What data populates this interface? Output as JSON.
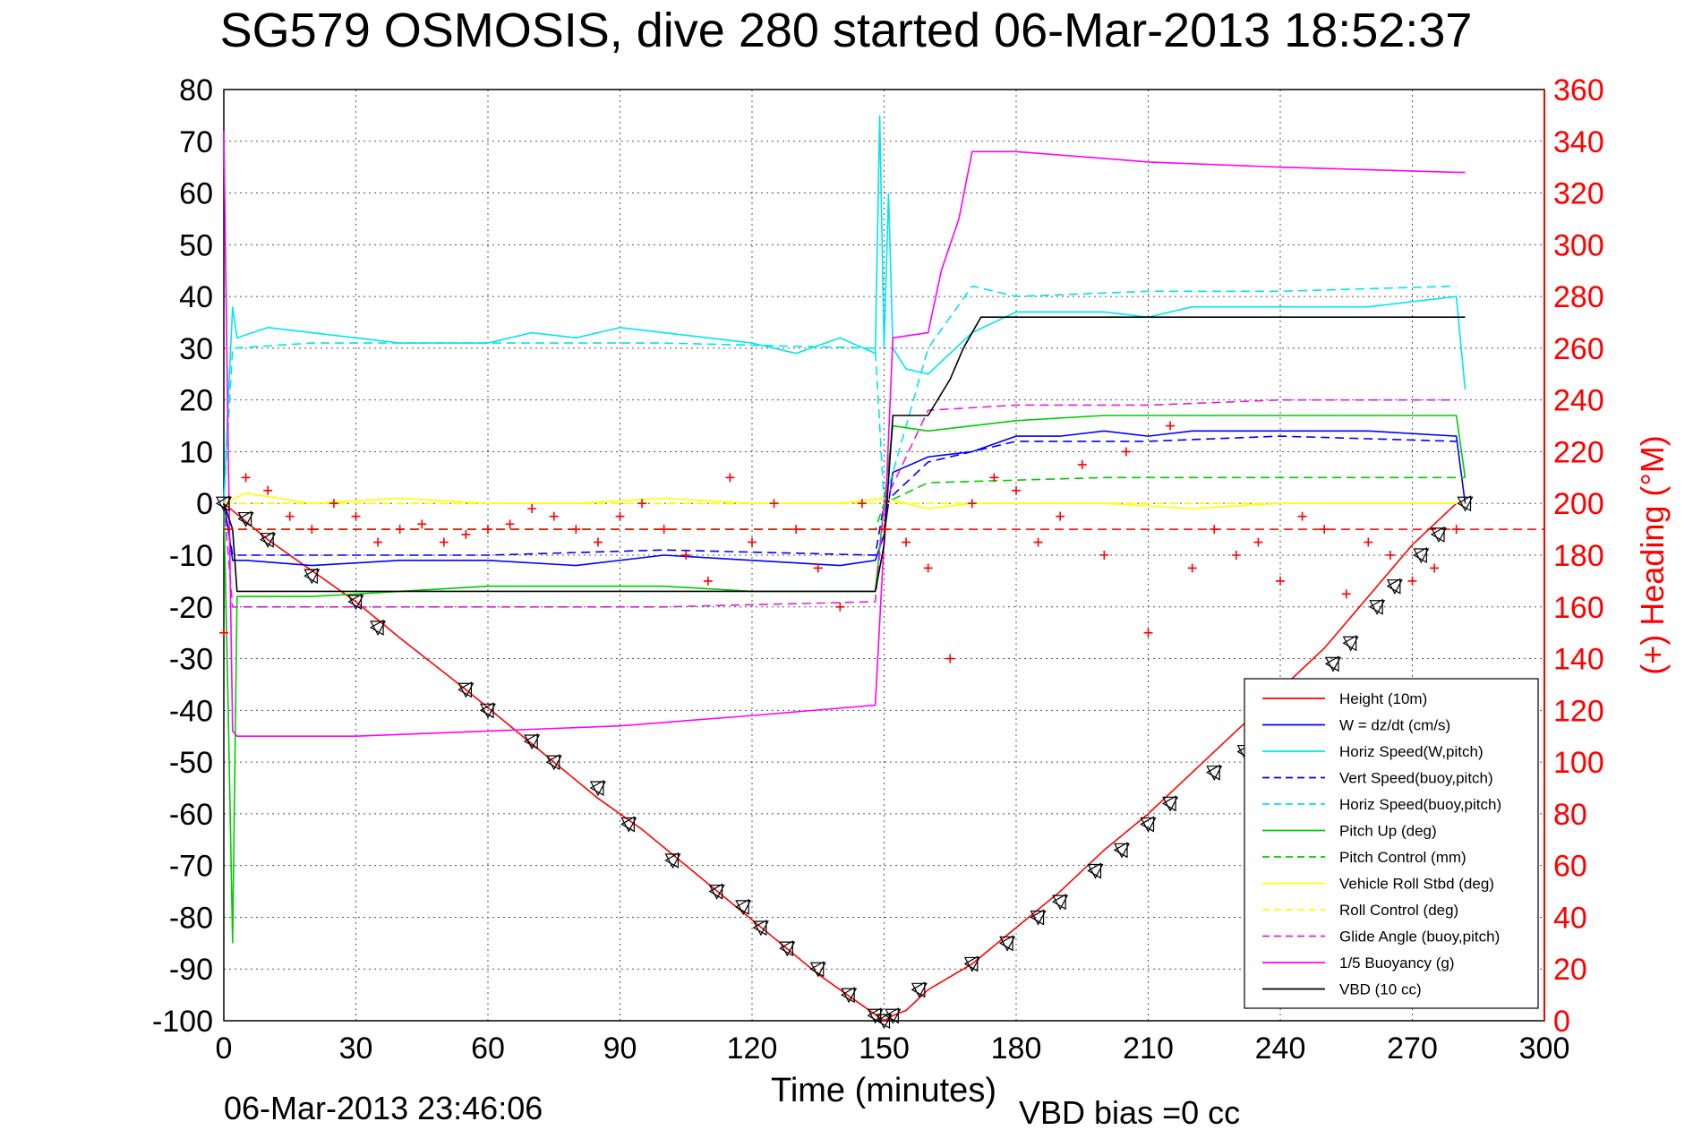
{
  "chart_data": {
    "type": "line",
    "title": "SG579 OSMOSIS, dive 280 started 06-Mar-2013 18:52:37",
    "xlabel": "Time (minutes)",
    "ylabel_right": "(+) Heading (°M)",
    "footer_left": "06-Mar-2013 23:46:06",
    "footer_right": "VBD bias =0 cc",
    "xlim": [
      0,
      300
    ],
    "ylim_left": [
      -100,
      80
    ],
    "ylim_right": [
      0,
      360
    ],
    "x_ticks": [
      "0",
      "30",
      "60",
      "90",
      "120",
      "150",
      "180",
      "210",
      "240",
      "270",
      "300"
    ],
    "y_left_ticks": [
      "80",
      "70",
      "60",
      "50",
      "40",
      "30",
      "20",
      "10",
      "0",
      "-10",
      "-20",
      "-30",
      "-40",
      "-50",
      "-60",
      "-70",
      "-80",
      "-90",
      "-100"
    ],
    "y_right_ticks": [
      "360",
      "340",
      "320",
      "300",
      "280",
      "260",
      "240",
      "220",
      "200",
      "180",
      "160",
      "140",
      "120",
      "100",
      "80",
      "60",
      "40",
      "20",
      "0"
    ],
    "grid": true,
    "legend_position": "bottom-right",
    "series": [
      {
        "name": "Height (10m)",
        "color": "#ff0000",
        "dash": "solid",
        "x": [
          0,
          10,
          20,
          30,
          40,
          55,
          65,
          75,
          85,
          95,
          105,
          115,
          125,
          135,
          145,
          150,
          152,
          155,
          160,
          170,
          180,
          190,
          200,
          210,
          220,
          230,
          240,
          250,
          260,
          270,
          280
        ],
        "y": [
          0,
          -7,
          -13,
          -19,
          -26,
          -36,
          -43,
          -50,
          -57,
          -63,
          -70,
          -77,
          -84,
          -91,
          -97,
          -100,
          -99,
          -98,
          -94,
          -89,
          -82,
          -75,
          -67,
          -60,
          -52,
          -44,
          -36,
          -28,
          -18,
          -8,
          0
        ]
      },
      {
        "name": "W = dz/dt (cm/s)",
        "color": "#0000ff",
        "dash": "solid",
        "x": [
          0,
          1,
          2,
          5,
          20,
          40,
          60,
          80,
          100,
          120,
          140,
          148,
          150,
          152,
          160,
          170,
          180,
          190,
          200,
          210,
          220,
          240,
          260,
          280,
          282
        ],
        "y": [
          0,
          -5,
          -11,
          -11,
          -12,
          -11,
          -11,
          -12,
          -10,
          -11,
          -12,
          -11,
          -6,
          6,
          9,
          10,
          13,
          13,
          14,
          13,
          14,
          14,
          14,
          13,
          0
        ]
      },
      {
        "name": "Horiz Speed(W,pitch)",
        "color": "#00e5ee",
        "dash": "solid",
        "x": [
          0,
          1,
          2,
          3,
          10,
          20,
          30,
          40,
          50,
          60,
          70,
          80,
          90,
          100,
          110,
          120,
          130,
          140,
          148,
          149,
          150,
          151,
          152,
          155,
          160,
          170,
          180,
          190,
          200,
          210,
          220,
          240,
          260,
          280,
          282
        ],
        "y": [
          0,
          20,
          38,
          32,
          34,
          33,
          32,
          31,
          31,
          31,
          33,
          32,
          34,
          33,
          32,
          31,
          29,
          32,
          29,
          75,
          30,
          60,
          30,
          26,
          25,
          33,
          37,
          37,
          37,
          36,
          38,
          38,
          38,
          40,
          22
        ]
      },
      {
        "name": "Vert Speed(buoy,pitch)",
        "color": "#0000ff",
        "dash": "dashed",
        "x": [
          0,
          2,
          20,
          60,
          100,
          148,
          150,
          160,
          180,
          210,
          240,
          280
        ],
        "y": [
          0,
          -10,
          -10,
          -10,
          -9,
          -10,
          0,
          8,
          12,
          12,
          13,
          12
        ]
      },
      {
        "name": "Horiz Speed(buoy,pitch)",
        "color": "#00e5ee",
        "dash": "dashed",
        "x": [
          0,
          2,
          20,
          60,
          100,
          148,
          150,
          160,
          170,
          180,
          210,
          240,
          280
        ],
        "y": [
          0,
          30,
          31,
          31,
          31,
          30,
          0,
          30,
          42,
          40,
          41,
          41,
          42
        ]
      },
      {
        "name": "Pitch Up (deg)",
        "color": "#00cc00",
        "dash": "solid",
        "x": [
          0,
          1,
          2,
          3,
          5,
          20,
          40,
          60,
          80,
          100,
          120,
          140,
          148,
          150,
          152,
          160,
          170,
          180,
          200,
          220,
          240,
          260,
          280,
          282
        ],
        "y": [
          0,
          -40,
          -85,
          -18,
          -18,
          -18,
          -17,
          -16,
          -16,
          -16,
          -17,
          -17,
          -17,
          0,
          15,
          14,
          15,
          16,
          17,
          17,
          17,
          17,
          17,
          5
        ]
      },
      {
        "name": "Pitch Control (mm)",
        "color": "#00cc00",
        "dash": "dashed",
        "x": [
          0,
          5,
          50,
          100,
          148,
          150,
          160,
          200,
          240,
          282
        ],
        "y": [
          -5,
          -5,
          -5,
          -5,
          -5,
          0,
          4,
          5,
          5,
          5
        ]
      },
      {
        "name": "Vehicle Roll Stbd (deg)",
        "color": "#ffff00",
        "dash": "solid",
        "x": [
          0,
          5,
          20,
          40,
          60,
          80,
          100,
          120,
          140,
          150,
          160,
          170,
          180,
          200,
          220,
          240,
          260,
          282
        ],
        "y": [
          0,
          2,
          0,
          1,
          0,
          0,
          1,
          0,
          0,
          1,
          -1,
          0,
          0,
          0,
          -1,
          0,
          0,
          0
        ]
      },
      {
        "name": "Roll Control (deg)",
        "color": "#ffff00",
        "dash": "dashed",
        "x": [
          0,
          50,
          100,
          148,
          150,
          200,
          250,
          282
        ],
        "y": [
          0,
          0,
          0,
          0,
          0,
          0,
          0,
          0
        ]
      },
      {
        "name": "Glide Angle (buoy,pitch)",
        "color": "#dd22dd",
        "dash": "dashed",
        "x": [
          0,
          2,
          20,
          60,
          100,
          148,
          150,
          160,
          180,
          210,
          240,
          280
        ],
        "y": [
          0,
          -20,
          -20,
          -20,
          -20,
          -19,
          0,
          18,
          19,
          19,
          20,
          20
        ]
      },
      {
        "name": "1/5 Buoyancy (g)",
        "color": "#ff00ff",
        "dash": "solid",
        "x": [
          0,
          1,
          2,
          3,
          30,
          60,
          90,
          120,
          148,
          150,
          152,
          160,
          163,
          167,
          170,
          180,
          210,
          240,
          280,
          282
        ],
        "y": [
          72,
          10,
          -44,
          -45,
          -45,
          -44,
          -43,
          -41,
          -39,
          -7,
          32,
          33,
          45,
          55,
          68,
          68,
          66,
          65,
          64,
          64
        ]
      },
      {
        "name": "VBD (10 cc)",
        "color": "#000000",
        "dash": "solid",
        "x": [
          0,
          2,
          3,
          148,
          150,
          152,
          160,
          165,
          168,
          170,
          172,
          175,
          282
        ],
        "y": [
          0,
          -5,
          -17,
          -17,
          -8,
          17,
          17,
          24,
          30,
          33,
          36,
          36,
          36
        ]
      }
    ],
    "heading_series": {
      "name": "(+) Heading",
      "color": "#ff0000",
      "marker": "+",
      "x": [
        0,
        5,
        10,
        15,
        20,
        25,
        30,
        35,
        40,
        45,
        50,
        55,
        60,
        65,
        70,
        75,
        80,
        85,
        90,
        95,
        100,
        105,
        110,
        115,
        120,
        125,
        130,
        135,
        140,
        145,
        150,
        155,
        160,
        165,
        170,
        175,
        180,
        185,
        190,
        195,
        200,
        205,
        210,
        215,
        220,
        225,
        230,
        235,
        240,
        245,
        250,
        255,
        260,
        265,
        270,
        275,
        280
      ],
      "y": [
        150,
        210,
        205,
        195,
        190,
        200,
        195,
        185,
        190,
        192,
        185,
        188,
        190,
        192,
        198,
        195,
        190,
        185,
        195,
        200,
        190,
        180,
        170,
        210,
        185,
        200,
        190,
        175,
        160,
        200,
        190,
        185,
        175,
        140,
        200,
        210,
        205,
        185,
        195,
        215,
        180,
        220,
        150,
        230,
        175,
        190,
        180,
        185,
        170,
        195,
        190,
        165,
        185,
        180,
        170,
        175,
        190
      ]
    },
    "reference_lines": [
      {
        "name": "heading reference",
        "color": "#ff0000",
        "dash": "dashed",
        "y_right": 190
      }
    ],
    "markers_triangles": {
      "x": [
        0,
        5,
        10,
        20,
        30,
        35,
        55,
        60,
        70,
        75,
        85,
        92,
        102,
        112,
        118,
        122,
        128,
        135,
        142,
        148,
        150,
        152,
        158,
        170,
        178,
        185,
        190,
        198,
        204,
        210,
        215,
        225,
        232,
        240,
        246,
        252,
        256,
        262,
        266,
        272,
        276,
        282
      ],
      "y": [
        0,
        -3,
        -7,
        -14,
        -19,
        -24,
        -36,
        -40,
        -46,
        -50,
        -55,
        -62,
        -69,
        -75,
        -78,
        -82,
        -86,
        -90,
        -95,
        -99,
        -100,
        -99,
        -94,
        -89,
        -85,
        -80,
        -77,
        -71,
        -67,
        -62,
        -58,
        -52,
        -48,
        -40,
        -36,
        -31,
        -27,
        -20,
        -16,
        -10,
        -6,
        0
      ]
    }
  },
  "legend": [
    {
      "label": "Height (10m)",
      "color": "#ff0000",
      "dash": "solid"
    },
    {
      "label": "W = dz/dt (cm/s)",
      "color": "#0000ff",
      "dash": "solid"
    },
    {
      "label": "Horiz Speed(W,pitch)",
      "color": "#00e5ee",
      "dash": "solid"
    },
    {
      "label": "Vert Speed(buoy,pitch)",
      "color": "#0000ff",
      "dash": "dashed"
    },
    {
      "label": "Horiz Speed(buoy,pitch)",
      "color": "#00e5ee",
      "dash": "dashed"
    },
    {
      "label": "Pitch Up (deg)",
      "color": "#00cc00",
      "dash": "solid"
    },
    {
      "label": "Pitch Control (mm)",
      "color": "#00cc00",
      "dash": "dashed"
    },
    {
      "label": "Vehicle Roll Stbd (deg)",
      "color": "#ffff00",
      "dash": "solid"
    },
    {
      "label": "Roll Control (deg)",
      "color": "#ffff00",
      "dash": "dashed"
    },
    {
      "label": "Glide Angle (buoy,pitch)",
      "color": "#dd22dd",
      "dash": "dashed"
    },
    {
      "label": "1/5 Buoyancy (g)",
      "color": "#ff00ff",
      "dash": "solid"
    },
    {
      "label": "VBD (10 cc)",
      "color": "#000000",
      "dash": "solid"
    }
  ]
}
